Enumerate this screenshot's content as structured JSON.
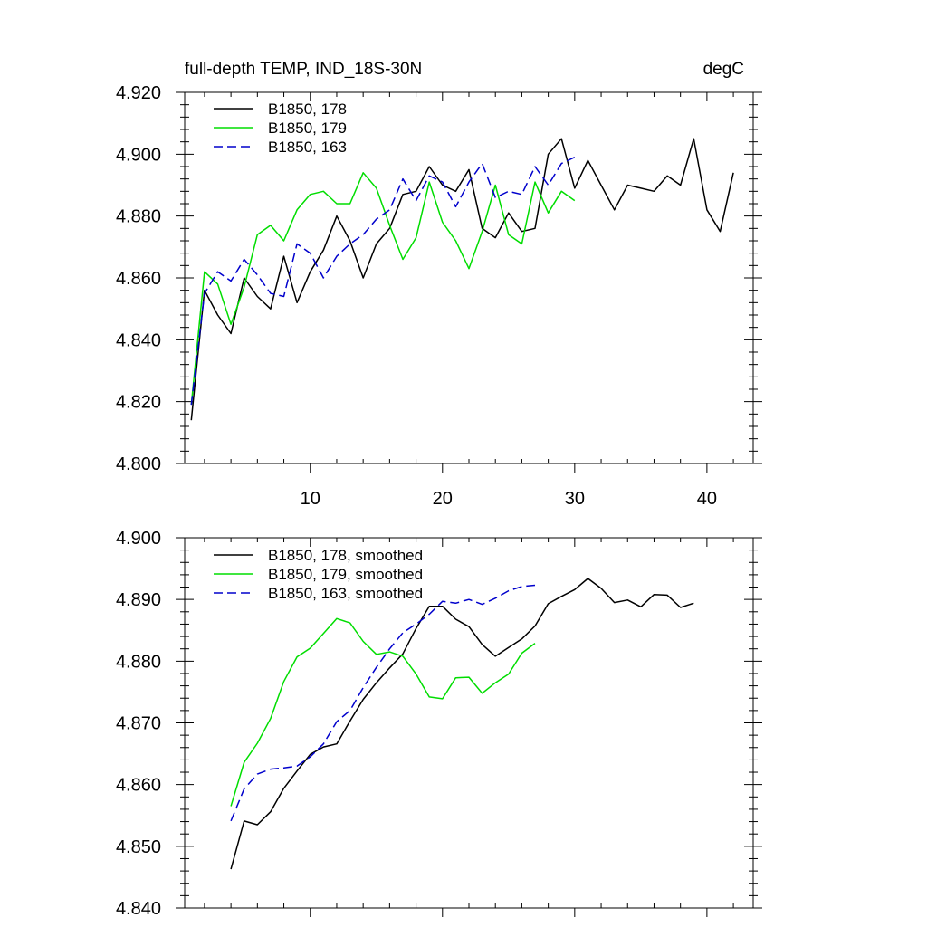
{
  "header": {
    "left_title": "full-depth TEMP, IND_18S-30N",
    "right_title": "degC"
  },
  "chart_data": [
    {
      "type": "line",
      "name": "top-panel",
      "xlim": [
        0.5,
        43.5
      ],
      "ylim": [
        4.8,
        4.92
      ],
      "xticks": [
        10,
        20,
        30,
        40
      ],
      "xtick_labels": [
        "10",
        "20",
        "30",
        "40"
      ],
      "yticks": [
        4.8,
        4.82,
        4.84,
        4.86,
        4.88,
        4.9,
        4.92
      ],
      "ytick_labels": [
        "4.800",
        "4.820",
        "4.840",
        "4.860",
        "4.880",
        "4.900",
        "4.920"
      ],
      "series": [
        {
          "name": "B1850, 178",
          "color": "#000000",
          "dashed": false,
          "x": [
            1,
            2,
            3,
            4,
            5,
            6,
            7,
            8,
            9,
            10,
            11,
            12,
            13,
            14,
            15,
            16,
            17,
            18,
            19,
            20,
            21,
            22,
            23,
            24,
            25,
            26,
            27,
            28,
            29,
            30,
            31,
            32,
            33,
            34,
            35,
            36,
            37,
            38,
            39,
            40,
            41,
            42
          ],
          "y": [
            4.814,
            4.856,
            4.848,
            4.842,
            4.86,
            4.854,
            4.85,
            4.867,
            4.852,
            4.862,
            4.869,
            4.88,
            4.872,
            4.86,
            4.871,
            4.876,
            4.887,
            4.888,
            4.896,
            4.89,
            4.888,
            4.895,
            4.876,
            4.873,
            4.881,
            4.875,
            4.876,
            4.9,
            4.905,
            4.889,
            4.898,
            4.89,
            4.882,
            4.89,
            4.889,
            4.888,
            4.893,
            4.89,
            4.905,
            4.882,
            4.875,
            4.894
          ]
        },
        {
          "name": "B1850, 179",
          "color": "#00dd00",
          "dashed": false,
          "x": [
            1,
            2,
            3,
            4,
            5,
            6,
            7,
            8,
            9,
            10,
            11,
            12,
            13,
            14,
            15,
            16,
            17,
            18,
            19,
            20,
            21,
            22,
            23,
            24,
            25,
            26,
            27,
            28,
            29,
            30
          ],
          "y": [
            4.819,
            4.862,
            4.858,
            4.845,
            4.857,
            4.874,
            4.877,
            4.872,
            4.882,
            4.887,
            4.888,
            4.884,
            4.884,
            4.894,
            4.889,
            4.877,
            4.866,
            4.873,
            4.891,
            4.878,
            4.872,
            4.863,
            4.875,
            4.89,
            4.874,
            4.871,
            4.891,
            4.881,
            4.888,
            4.885
          ]
        },
        {
          "name": "B1850, 163",
          "color": "#0000cc",
          "dashed": true,
          "x": [
            1,
            2,
            3,
            4,
            5,
            6,
            7,
            8,
            9,
            10,
            11,
            12,
            13,
            14,
            15,
            16,
            17,
            18,
            19,
            20,
            21,
            22,
            23,
            24,
            25,
            26,
            27,
            28,
            29,
            30
          ],
          "y": [
            4.819,
            4.855,
            4.862,
            4.859,
            4.866,
            4.861,
            4.855,
            4.854,
            4.871,
            4.868,
            4.86,
            4.867,
            4.871,
            4.874,
            4.879,
            4.882,
            4.892,
            4.885,
            4.893,
            4.891,
            4.883,
            4.891,
            4.897,
            4.886,
            4.888,
            4.887,
            4.896,
            4.89,
            4.897,
            4.899
          ]
        }
      ]
    },
    {
      "type": "line",
      "name": "bottom-panel",
      "xlim": [
        0.5,
        43.5
      ],
      "ylim": [
        4.84,
        4.9
      ],
      "xticks": [
        10,
        20,
        30,
        40
      ],
      "xtick_labels": [],
      "yticks": [
        4.84,
        4.85,
        4.86,
        4.87,
        4.88,
        4.89,
        4.9
      ],
      "ytick_labels": [
        "4.840",
        "4.850",
        "4.860",
        "4.870",
        "4.880",
        "4.890",
        "4.900"
      ],
      "series": [
        {
          "name": "B1850, 178, smoothed",
          "color": "#000000",
          "dashed": false,
          "x": [
            4,
            5,
            6,
            7,
            8,
            9,
            10,
            11,
            12,
            13,
            14,
            15,
            16,
            17,
            18,
            19,
            20,
            21,
            22,
            23,
            24,
            25,
            26,
            27,
            28,
            29,
            30,
            31,
            32,
            33,
            34,
            35,
            36,
            37,
            38,
            39
          ],
          "y": [
            4.8463,
            4.8541,
            4.8535,
            4.8556,
            4.8594,
            4.8622,
            4.8649,
            4.8661,
            4.8666,
            4.8703,
            4.8738,
            4.8765,
            4.8789,
            4.8812,
            4.8853,
            4.8889,
            4.8889,
            4.8868,
            4.8856,
            4.8827,
            4.8808,
            4.8822,
            4.8836,
            4.8857,
            4.8893,
            4.8905,
            4.8916,
            4.8934,
            4.8918,
            4.8895,
            4.8899,
            4.8888,
            4.8908,
            4.8907,
            4.8887,
            4.8894
          ]
        },
        {
          "name": "B1850, 179, smoothed",
          "color": "#00dd00",
          "dashed": false,
          "x": [
            4,
            5,
            6,
            7,
            8,
            9,
            10,
            11,
            12,
            13,
            14,
            15,
            16,
            17,
            18,
            19,
            20,
            21,
            22,
            23,
            24,
            25,
            26,
            27
          ],
          "y": [
            4.8565,
            4.8636,
            4.8667,
            4.8707,
            4.8767,
            4.8807,
            4.8821,
            4.8845,
            4.8869,
            4.8862,
            4.8832,
            4.8811,
            4.8815,
            4.8808,
            4.8779,
            4.8742,
            4.8739,
            4.8773,
            4.8774,
            4.8748,
            4.8765,
            4.8779,
            4.8813,
            4.8829
          ]
        },
        {
          "name": "B1850, 163, smoothed",
          "color": "#0000cc",
          "dashed": true,
          "x": [
            4,
            5,
            6,
            7,
            8,
            9,
            10,
            11,
            12,
            13,
            14,
            15,
            16,
            17,
            18,
            19,
            20,
            21,
            22,
            23,
            24,
            25,
            26,
            27
          ],
          "y": [
            4.8541,
            4.8593,
            4.8617,
            4.8625,
            4.8627,
            4.863,
            4.8645,
            4.8666,
            4.8702,
            4.872,
            4.8757,
            4.879,
            4.882,
            4.8846,
            4.886,
            4.8876,
            4.8897,
            4.8894,
            4.89,
            4.8892,
            4.8902,
            4.8914,
            4.8921,
            4.8923
          ]
        }
      ]
    }
  ]
}
